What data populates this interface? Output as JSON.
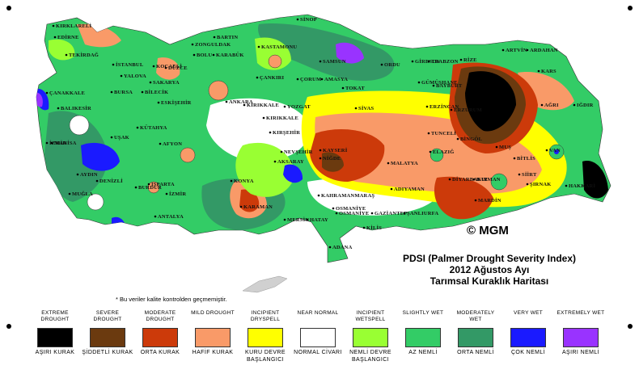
{
  "map": {
    "copyright": "© MGM",
    "title_lines": [
      "PDSI (Palmer Drought Severity Index)",
      "2012 Ağustos Ayı",
      "Tarımsal Kuraklık Haritası"
    ],
    "note": "* Bu veriler kalite kontrolden geçmemiştir.",
    "cities": [
      {
        "name": "KIRKLARELİ"
      },
      {
        "name": "EDİRNE"
      },
      {
        "name": "TEKİRDAĞ"
      },
      {
        "name": "İSTANBUL"
      },
      {
        "name": "BARTIN"
      },
      {
        "name": "ZONGULDAK"
      },
      {
        "name": "KARABÜK"
      },
      {
        "name": "SİNOP"
      },
      {
        "name": "KASTAMONU"
      },
      {
        "name": "SAMSUN"
      },
      {
        "name": "ORDU"
      },
      {
        "name": "GİRESUN"
      },
      {
        "name": "TRABZON"
      },
      {
        "name": "RİZE"
      },
      {
        "name": "ARTVİN"
      },
      {
        "name": "ARDAHAN"
      },
      {
        "name": "DÜZCE"
      },
      {
        "name": "BOLU"
      },
      {
        "name": "SAKARYA"
      },
      {
        "name": "KOCAELİ"
      },
      {
        "name": "YALOVA"
      },
      {
        "name": "BURSA"
      },
      {
        "name": "BİLECİK"
      },
      {
        "name": "ÇANAKKALE"
      },
      {
        "name": "BALIKESİR"
      },
      {
        "name": "ESKİŞEHİR"
      },
      {
        "name": "ANKARA"
      },
      {
        "name": "ÇANKIRI"
      },
      {
        "name": "ÇORUM"
      },
      {
        "name": "AMASYA"
      },
      {
        "name": "TOKAT"
      },
      {
        "name": "GÜMÜŞHANE"
      },
      {
        "name": "BAYBURT"
      },
      {
        "name": "ERZURUM"
      },
      {
        "name": "KARS"
      },
      {
        "name": "IĞDIR"
      },
      {
        "name": "AĞRI"
      },
      {
        "name": "ERZİNCAN"
      },
      {
        "name": "SİVAS"
      },
      {
        "name": "YOZGAT"
      },
      {
        "name": "KIRIKKALE"
      },
      {
        "name": "KIRŞEHİR"
      },
      {
        "name": "NEVŞEHİR"
      },
      {
        "name": "AKSARAY"
      },
      {
        "name": "KAYSERİ"
      },
      {
        "name": "TUNCELİ"
      },
      {
        "name": "BİNGÖL"
      },
      {
        "name": "MUŞ"
      },
      {
        "name": "ELAZIĞ"
      },
      {
        "name": "MALATYA"
      },
      {
        "name": "BİTLİS"
      },
      {
        "name": "VAN"
      },
      {
        "name": "SİİRT"
      },
      {
        "name": "BATMAN"
      },
      {
        "name": "ŞIRNAK"
      },
      {
        "name": "HAKKARİ"
      },
      {
        "name": "DİYARBAKIR"
      },
      {
        "name": "MARDİN"
      },
      {
        "name": "ŞANLIURFA"
      },
      {
        "name": "ADIYAMAN"
      },
      {
        "name": "KAHRAMANMARAŞ"
      },
      {
        "name": "GAZİANTEP"
      },
      {
        "name": "KİLİS"
      },
      {
        "name": "OSMANİYE"
      },
      {
        "name": "ADANA"
      },
      {
        "name": "HATAY"
      },
      {
        "name": "MERSİN"
      },
      {
        "name": "KARAMAN"
      },
      {
        "name": "KONYA"
      },
      {
        "name": "NİĞDE"
      },
      {
        "name": "ANTALYA"
      },
      {
        "name": "ISPARTA"
      },
      {
        "name": "BURDUR"
      },
      {
        "name": "DENİZLİ"
      },
      {
        "name": "MUĞLA"
      },
      {
        "name": "AYDIN"
      },
      {
        "name": "İZMİR"
      },
      {
        "name": "MANİSA"
      },
      {
        "name": "UŞAK"
      },
      {
        "name": "KÜTAHYA"
      },
      {
        "name": "AFYON"
      },
      {
        "name": "İZMİR"
      },
      {
        "name": "KIRIKKALE"
      },
      {
        "name": "OSMANİYE"
      }
    ]
  },
  "legend": [
    {
      "top": "EXTREME DROUGHT",
      "bottom": "AŞIRI KURAK",
      "color": "#000000"
    },
    {
      "top": "SEVERE DROUGHT",
      "bottom": "ŞİDDETLİ KURAK",
      "color": "#6b3a0f"
    },
    {
      "top": "MODERATE DROUGHT",
      "bottom": "ORTA KURAK",
      "color": "#cc3a0a"
    },
    {
      "top": "MILD DROUGHT",
      "bottom": "HAFİF KURAK",
      "color": "#f99a68"
    },
    {
      "top": "INCIPIENT DRYSPELL",
      "bottom": "KURU DEVRE BAŞLANGICI",
      "color": "#ffff00"
    },
    {
      "top": "NEAR NORMAL",
      "bottom": "NORMAL CİVARI",
      "color": "#ffffff"
    },
    {
      "top": "INCIPIENT WETSPELL",
      "bottom": "NEMLİ DEVRE BAŞLANGICI",
      "color": "#99ff33"
    },
    {
      "top": "SLIGHTLY WET",
      "bottom": "AZ NEMLİ",
      "color": "#33cc66"
    },
    {
      "top": "MODERATELY WET",
      "bottom": "ORTA NEMLİ",
      "color": "#339966"
    },
    {
      "top": "VERY WET",
      "bottom": "ÇOK NEMLİ",
      "color": "#1a1aff"
    },
    {
      "top": "EXTREMELY WET",
      "bottom": "AŞIRI NEMLİ",
      "color": "#9933ff"
    }
  ]
}
